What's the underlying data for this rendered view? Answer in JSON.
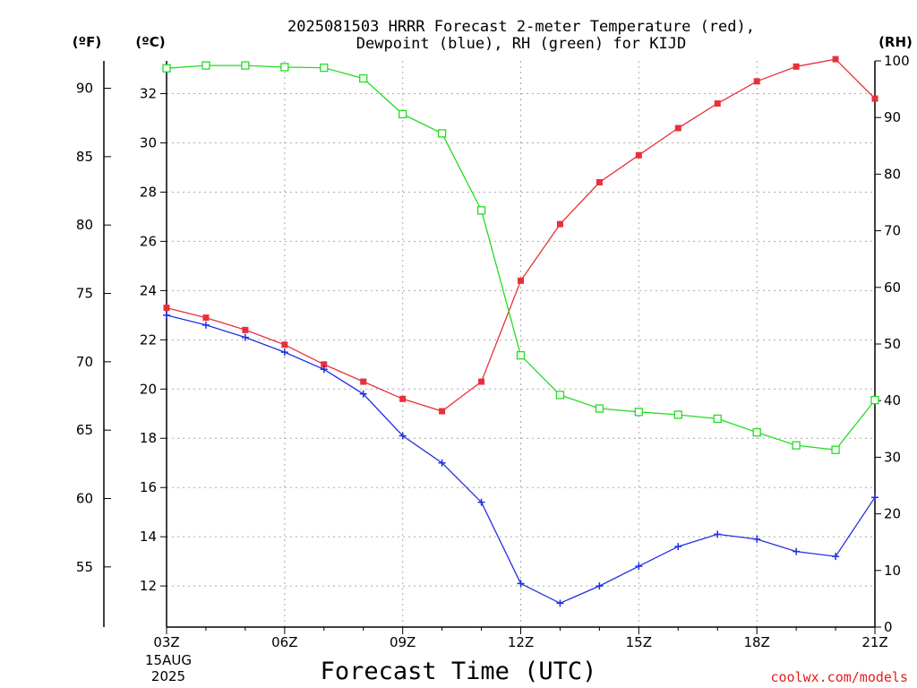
{
  "chart_data": {
    "type": "line",
    "title_line1": "2025081503 HRRR Forecast 2-meter Temperature (red),",
    "title_line2": "Dewpoint (blue), RH (green) for KIJD",
    "xlabel": "Forecast Time (UTC)",
    "credit": "coolwx.com/models",
    "x": [
      "03Z",
      "04Z",
      "05Z",
      "06Z",
      "07Z",
      "08Z",
      "09Z",
      "10Z",
      "11Z",
      "12Z",
      "13Z",
      "14Z",
      "15Z",
      "16Z",
      "17Z",
      "18Z",
      "19Z",
      "20Z",
      "21Z"
    ],
    "xticks": [
      "03Z",
      "06Z",
      "09Z",
      "12Z",
      "15Z",
      "18Z",
      "21Z"
    ],
    "x_start_date_line1": "15AUG",
    "x_start_date_line2": "2025",
    "axes": {
      "fahrenheit": {
        "unit": "(ºF)",
        "ticks": [
          55,
          60,
          65,
          70,
          75,
          80,
          85,
          90
        ],
        "ylim": [
          50.6,
          92
        ]
      },
      "celsius": {
        "unit": "(ºC)",
        "ticks": [
          12,
          14,
          16,
          18,
          20,
          22,
          24,
          26,
          28,
          30,
          32
        ],
        "ylim": [
          10.33,
          33.33
        ]
      },
      "rh": {
        "unit": "(RH)",
        "ticks": [
          0,
          10,
          20,
          30,
          40,
          50,
          60,
          70,
          80,
          90,
          100
        ],
        "ylim": [
          0,
          100
        ]
      }
    },
    "grid": true,
    "series": [
      {
        "name": "Temperature",
        "axis": "celsius",
        "color": "#e8303a",
        "marker": "filled-square",
        "values": [
          23.3,
          22.9,
          22.4,
          21.8,
          21.0,
          20.3,
          19.6,
          19.1,
          20.3,
          24.4,
          26.7,
          28.4,
          29.5,
          30.6,
          31.6,
          32.5,
          33.1,
          33.4,
          31.8
        ]
      },
      {
        "name": "Dewpoint",
        "axis": "celsius",
        "color": "#2030e0",
        "marker": "plus",
        "values": [
          23.0,
          22.6,
          22.1,
          21.5,
          20.8,
          19.8,
          18.1,
          17.0,
          15.4,
          12.1,
          11.3,
          12.0,
          12.8,
          13.6,
          14.1,
          13.9,
          13.4,
          13.2,
          15.6
        ]
      },
      {
        "name": "RH",
        "axis": "rh",
        "color": "#22dd22",
        "marker": "open-square",
        "values": [
          98.7,
          99.2,
          99.2,
          98.9,
          98.8,
          96.9,
          90.6,
          87.2,
          73.6,
          48.0,
          41.0,
          38.6,
          38.0,
          37.5,
          36.8,
          34.4,
          32.1,
          31.3,
          40.1
        ]
      }
    ]
  }
}
